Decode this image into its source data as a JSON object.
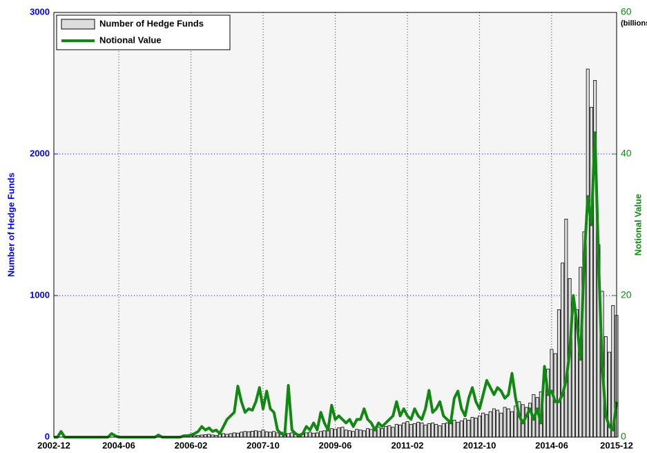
{
  "chart_data": {
    "type": "bar",
    "x": [
      "2002-12",
      "2003-01",
      "2003-02",
      "2003-03",
      "2003-04",
      "2003-05",
      "2003-06",
      "2003-07",
      "2003-08",
      "2003-09",
      "2003-10",
      "2003-11",
      "2003-12",
      "2004-01",
      "2004-02",
      "2004-03",
      "2004-04",
      "2004-05",
      "2004-06",
      "2004-07",
      "2004-08",
      "2004-09",
      "2004-10",
      "2004-11",
      "2004-12",
      "2005-01",
      "2005-02",
      "2005-03",
      "2005-04",
      "2005-05",
      "2005-06",
      "2005-07",
      "2005-08",
      "2005-09",
      "2005-10",
      "2005-11",
      "2005-12",
      "2006-01",
      "2006-02",
      "2006-03",
      "2006-04",
      "2006-05",
      "2006-06",
      "2006-07",
      "2006-08",
      "2006-09",
      "2006-10",
      "2006-11",
      "2006-12",
      "2007-01",
      "2007-02",
      "2007-03",
      "2007-04",
      "2007-05",
      "2007-06",
      "2007-07",
      "2007-08",
      "2007-09",
      "2007-10",
      "2007-11",
      "2007-12",
      "2008-01",
      "2008-02",
      "2008-03",
      "2008-04",
      "2008-05",
      "2008-06",
      "2008-07",
      "2008-08",
      "2008-09",
      "2008-10",
      "2008-11",
      "2008-12",
      "2009-01",
      "2009-02",
      "2009-03",
      "2009-04",
      "2009-05",
      "2009-06",
      "2009-07",
      "2009-08",
      "2009-09",
      "2009-10",
      "2009-11",
      "2009-12",
      "2010-01",
      "2010-02",
      "2010-03",
      "2010-04",
      "2010-05",
      "2010-06",
      "2010-07",
      "2010-08",
      "2010-09",
      "2010-10",
      "2010-11",
      "2010-12",
      "2011-01",
      "2011-02",
      "2011-03",
      "2011-04",
      "2011-05",
      "2011-06",
      "2011-07",
      "2011-08",
      "2011-09",
      "2011-10",
      "2011-11",
      "2011-12",
      "2012-01",
      "2012-02",
      "2012-03",
      "2012-04",
      "2012-05",
      "2012-06",
      "2012-07",
      "2012-08",
      "2012-09",
      "2012-10",
      "2012-11",
      "2012-12",
      "2013-01",
      "2013-02",
      "2013-03",
      "2013-04",
      "2013-05",
      "2013-06",
      "2013-07",
      "2013-08",
      "2013-09",
      "2013-10",
      "2013-11",
      "2013-12",
      "2014-01",
      "2014-02",
      "2014-03",
      "2014-04",
      "2014-05",
      "2014-06",
      "2014-07",
      "2014-08",
      "2014-09",
      "2014-10",
      "2014-11",
      "2014-12",
      "2015-01",
      "2015-02",
      "2015-03",
      "2015-04",
      "2015-05",
      "2015-06",
      "2015-07",
      "2015-08",
      "2015-09",
      "2015-10",
      "2015-11",
      "2015-12"
    ],
    "series": [
      {
        "name": "Number of Hedge Funds",
        "type": "bar",
        "color": "#dddddd",
        "values": [
          0,
          0,
          0,
          0,
          0,
          0,
          0,
          0,
          0,
          0,
          0,
          0,
          0,
          0,
          0,
          0,
          0,
          0,
          0,
          0,
          0,
          0,
          0,
          0,
          0,
          0,
          0,
          0,
          0,
          0,
          0,
          0,
          0,
          0,
          0,
          0,
          2,
          5,
          8,
          10,
          12,
          15,
          18,
          20,
          15,
          12,
          20,
          25,
          20,
          25,
          30,
          28,
          35,
          40,
          38,
          42,
          45,
          40,
          50,
          38,
          35,
          40,
          30,
          35,
          28,
          25,
          30,
          20,
          22,
          25,
          30,
          35,
          28,
          30,
          40,
          45,
          50,
          60,
          55,
          65,
          70,
          50,
          45,
          40,
          55,
          50,
          45,
          60,
          55,
          65,
          70,
          60,
          75,
          80,
          70,
          90,
          85,
          100,
          110,
          90,
          95,
          105,
          100,
          85,
          95,
          100,
          90,
          80,
          95,
          100,
          110,
          120,
          105,
          115,
          130,
          120,
          140,
          135,
          150,
          170,
          160,
          180,
          200,
          190,
          170,
          210,
          200,
          180,
          220,
          250,
          230,
          210,
          240,
          300,
          280,
          320,
          410,
          480,
          620,
          590,
          900,
          1230,
          1540,
          1120,
          940,
          900,
          1200,
          1450,
          2600,
          2330,
          2520,
          1360,
          1030,
          710,
          600,
          930,
          860
        ]
      },
      {
        "name": "Notional Value",
        "type": "line",
        "axis": "y2",
        "color": "#118811",
        "values": [
          0,
          0,
          0.8,
          0,
          0,
          0,
          0,
          0,
          0,
          0,
          0,
          0,
          0,
          0,
          0,
          0,
          0.5,
          0.2,
          0,
          0,
          0,
          0,
          0,
          0,
          0,
          0,
          0,
          0,
          0,
          0.3,
          0,
          0,
          0,
          0,
          0,
          0,
          0.2,
          0.2,
          0.3,
          0.5,
          0.8,
          1.5,
          1,
          1.3,
          0.8,
          1,
          0.5,
          1.5,
          2.5,
          3,
          3.5,
          7.2,
          5,
          3.5,
          4,
          3.8,
          5,
          7,
          4,
          6.5,
          4,
          3.5,
          1,
          0.5,
          0.3,
          7.3,
          1,
          0.5,
          0.2,
          0.5,
          1.5,
          1,
          2,
          1,
          3.5,
          2,
          1,
          4.5,
          2.5,
          3,
          2.5,
          2,
          2.5,
          1.5,
          2.5,
          2.5,
          4,
          2.5,
          2,
          1,
          2,
          1.5,
          2,
          2.5,
          3,
          5,
          3,
          4,
          3,
          2.5,
          4,
          3,
          2.5,
          4,
          6.6,
          3.5,
          4,
          5,
          3,
          2.5,
          2,
          5.5,
          6.5,
          4,
          3,
          5.5,
          7,
          5,
          4,
          6,
          8,
          7,
          6,
          7,
          6.5,
          5.5,
          6,
          9,
          5.5,
          3,
          2,
          3,
          4,
          2.5,
          4,
          2,
          10,
          6,
          6.5,
          5,
          5,
          6,
          8,
          12,
          20,
          16,
          11,
          25,
          34,
          30,
          43,
          25,
          10,
          3,
          1.5,
          1,
          5
        ]
      }
    ],
    "xlim": [
      "2002-12",
      "2015-12"
    ],
    "xticks": [
      "2002-12",
      "2004-06",
      "2006-02",
      "2007-10",
      "2009-06",
      "2011-02",
      "2012-10",
      "2014-06",
      "2015-12"
    ],
    "ylim": [
      0,
      3000
    ],
    "yticks": [
      0,
      1000,
      2000,
      3000
    ],
    "y2lim": [
      0,
      60
    ],
    "y2ticks": [
      0,
      20,
      40,
      60
    ],
    "ylabel": "Number of Hedge Funds",
    "y2label": "Notional Value",
    "y2unit": "(billions)",
    "ycolor": "#0000ff",
    "y2color": "#118811",
    "grid": true,
    "legend": "upper left"
  }
}
